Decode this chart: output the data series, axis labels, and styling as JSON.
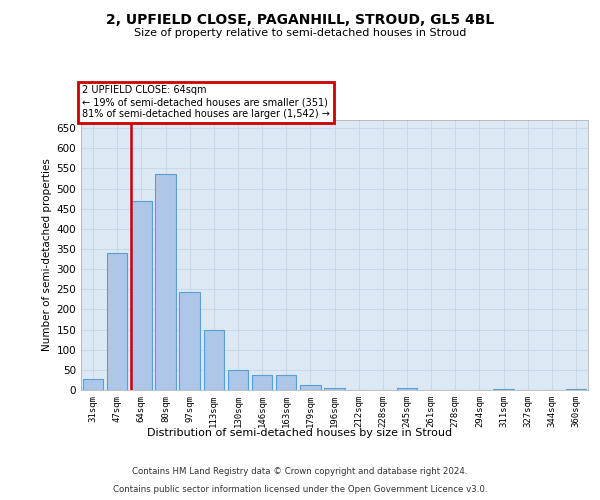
{
  "title_line1": "2, UPFIELD CLOSE, PAGANHILL, STROUD, GL5 4BL",
  "title_line2": "Size of property relative to semi-detached houses in Stroud",
  "xlabel": "Distribution of semi-detached houses by size in Stroud",
  "ylabel": "Number of semi-detached properties",
  "categories": [
    "31sqm",
    "47sqm",
    "64sqm",
    "80sqm",
    "97sqm",
    "113sqm",
    "130sqm",
    "146sqm",
    "163sqm",
    "179sqm",
    "196sqm",
    "212sqm",
    "228sqm",
    "245sqm",
    "261sqm",
    "278sqm",
    "294sqm",
    "311sqm",
    "327sqm",
    "344sqm",
    "360sqm"
  ],
  "values": [
    27,
    340,
    470,
    535,
    243,
    150,
    50,
    36,
    36,
    12,
    5,
    0,
    0,
    4,
    0,
    0,
    0,
    3,
    0,
    0,
    3
  ],
  "bar_color": "#aec6e8",
  "bar_edge_color": "#5a9fd4",
  "vline_index": 2,
  "vline_color": "#cc0000",
  "annotation_title": "2 UPFIELD CLOSE: 64sqm",
  "annotation_line1": "← 19% of semi-detached houses are smaller (351)",
  "annotation_line2": "81% of semi-detached houses are larger (1,542) →",
  "annotation_box_edge_color": "#cc0000",
  "ylim": [
    0,
    670
  ],
  "yticks": [
    0,
    50,
    100,
    150,
    200,
    250,
    300,
    350,
    400,
    450,
    500,
    550,
    600,
    650
  ],
  "grid_color": "#c8d8e8",
  "plot_bg_color": "#dce9f5",
  "footer_line1": "Contains HM Land Registry data © Crown copyright and database right 2024.",
  "footer_line2": "Contains public sector information licensed under the Open Government Licence v3.0."
}
